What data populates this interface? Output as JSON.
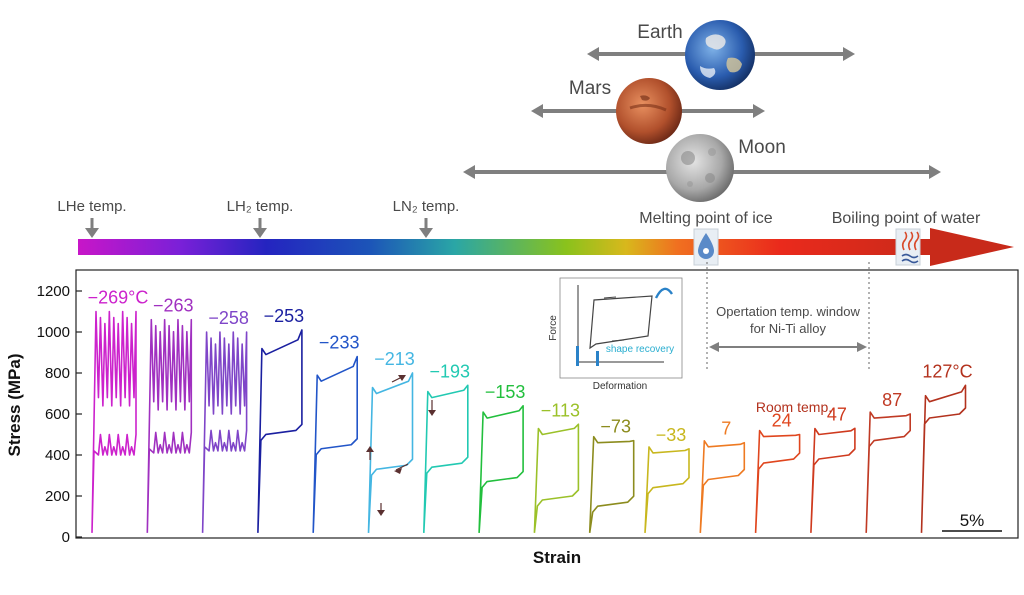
{
  "planets": [
    {
      "name": "Earth",
      "icon": "earth-globe-icon"
    },
    {
      "name": "Mars",
      "icon": "mars-globe-icon"
    },
    {
      "name": "Moon",
      "icon": "moon-globe-icon"
    }
  ],
  "temperature_bar": {
    "markers": [
      {
        "label": "LHe temp.",
        "icon": "down-arrow-icon"
      },
      {
        "label": "LH₂ temp.",
        "icon": "down-arrow-icon"
      },
      {
        "label": "LN₂ temp.",
        "icon": "down-arrow-icon"
      }
    ],
    "melting_label": "Melting point of ice",
    "boiling_label": "Boiling point of water",
    "melting_icon": "ice-drop-icon",
    "boiling_icon": "boiling-water-icon"
  },
  "window_annotation": {
    "line1": "Opertation temp. window",
    "line2": "for Ni-Ti alloy"
  },
  "inset": {
    "xlabel": "Deformation",
    "ylabel": "Force",
    "note": "shape recovery"
  },
  "scale_bar_label": "5%",
  "room_temp_label": "Room temp.",
  "chart_data": {
    "type": "line",
    "ylabel": "Stress (MPa)",
    "xlabel": "Strain",
    "ylim": [
      0,
      1300
    ],
    "yticks": [
      "0",
      "200",
      "400",
      "600",
      "800",
      "1000",
      "1200"
    ],
    "scale_bar_strain_percent": 5,
    "series": [
      {
        "name": "−269°C",
        "temp": -269,
        "color": "#cc22cc",
        "peak": 1100,
        "upper": 580,
        "lower": 420,
        "serrated": true
      },
      {
        "name": "−263",
        "temp": -263,
        "color": "#a030c0",
        "peak": 1060,
        "upper": 560,
        "lower": 430,
        "serrated": true
      },
      {
        "name": "−258",
        "temp": -258,
        "color": "#7f45c8",
        "peak": 1000,
        "upper": 540,
        "lower": 440,
        "serrated": true
      },
      {
        "name": "−253",
        "temp": -253,
        "color": "#1a1fa0",
        "peak": 1010,
        "upper": 890,
        "lower": 520,
        "serrated": false
      },
      {
        "name": "−233",
        "temp": -233,
        "color": "#2255c8",
        "peak": 880,
        "upper": 760,
        "lower": 450,
        "serrated": false
      },
      {
        "name": "−213",
        "temp": -213,
        "color": "#44b6e2",
        "peak": 800,
        "upper": 700,
        "lower": 350,
        "serrated": false
      },
      {
        "name": "−193",
        "temp": -193,
        "color": "#22c9b2",
        "peak": 740,
        "upper": 680,
        "lower": 360,
        "serrated": false
      },
      {
        "name": "−153",
        "temp": -153,
        "color": "#22bf3d",
        "peak": 640,
        "upper": 580,
        "lower": 290,
        "serrated": false
      },
      {
        "name": "−113",
        "temp": -113,
        "color": "#9bc129",
        "peak": 550,
        "upper": 500,
        "lower": 200,
        "serrated": false
      },
      {
        "name": "−73",
        "temp": -73,
        "color": "#8c8c1e",
        "peak": 470,
        "upper": 460,
        "lower": 170,
        "serrated": false
      },
      {
        "name": "−33",
        "temp": -33,
        "color": "#c8b71e",
        "peak": 430,
        "upper": 410,
        "lower": 260,
        "serrated": false
      },
      {
        "name": "7",
        "temp": 7,
        "color": "#ee7a22",
        "peak": 460,
        "upper": 440,
        "lower": 300,
        "serrated": false
      },
      {
        "name": "24",
        "temp": 24,
        "color": "#e0461e",
        "peak": 500,
        "upper": 490,
        "lower": 380,
        "serrated": false
      },
      {
        "name": "47",
        "temp": 47,
        "color": "#cf3a1e",
        "peak": 530,
        "upper": 500,
        "lower": 400,
        "serrated": false
      },
      {
        "name": "87",
        "temp": 87,
        "color": "#c03a24",
        "peak": 600,
        "upper": 580,
        "lower": 490,
        "serrated": false
      },
      {
        "name": "127°C",
        "temp": 127,
        "color": "#b3321e",
        "peak": 740,
        "upper": 660,
        "lower": 600,
        "serrated": false
      }
    ]
  }
}
